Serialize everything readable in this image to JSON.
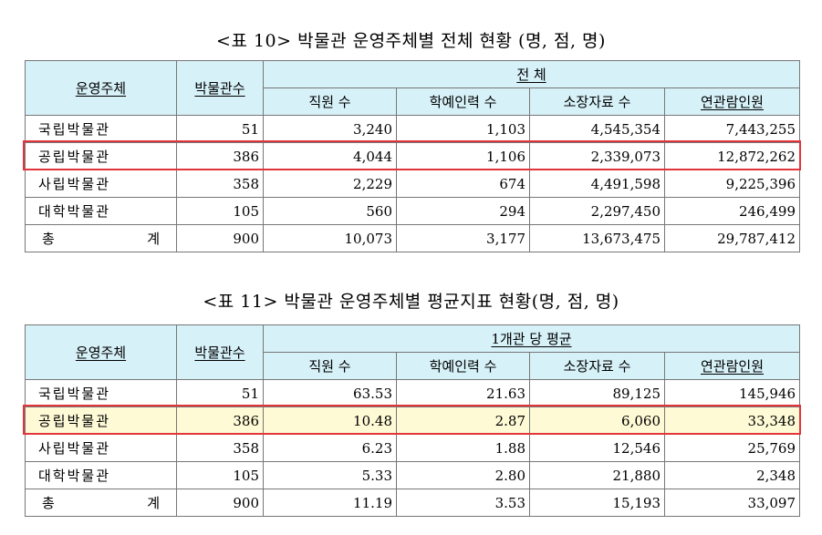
{
  "table10": {
    "caption": "<표 10> 박물관 운영주체별 전체 현황 (명, 점, 명)",
    "header": {
      "org": "운영주체",
      "count": "박물관수",
      "group": "전 체",
      "cols": [
        "직원 수",
        "학예인력 수",
        "소장자료 수",
        "연관람인원"
      ]
    },
    "rows": [
      {
        "org": "국립박물관",
        "count": "51",
        "v": [
          "3,240",
          "1,103",
          "4,545,354",
          "7,443,255"
        ]
      },
      {
        "org": "공립박물관",
        "count": "386",
        "v": [
          "4,044",
          "1,106",
          "2,339,073",
          "12,872,262"
        ]
      },
      {
        "org": "사립박물관",
        "count": "358",
        "v": [
          "2,229",
          "674",
          "4,491,598",
          "9,225,396"
        ]
      },
      {
        "org": "대학박물관",
        "count": "105",
        "v": [
          "560",
          "294",
          "2,297,450",
          "246,499"
        ]
      }
    ],
    "total": {
      "label_a": "총",
      "label_b": "계",
      "count": "900",
      "v": [
        "10,073",
        "3,177",
        "13,673,475",
        "29,787,412"
      ]
    }
  },
  "table11": {
    "caption": "<표 11> 박물관 운영주체별 평균지표 현황(명, 점, 명)",
    "header": {
      "org": "운영주체",
      "count": "박물관수",
      "group": "1개관 당 평균",
      "cols": [
        "직원 수",
        "학예인력 수",
        "소장자료 수",
        "연관람인원"
      ]
    },
    "rows": [
      {
        "org": "국립박물관",
        "count": "51",
        "v": [
          "63.53",
          "21.63",
          "89,125",
          "145,946"
        ]
      },
      {
        "org": "공립박물관",
        "count": "386",
        "v": [
          "10.48",
          "2.87",
          "6,060",
          "33,348"
        ]
      },
      {
        "org": "사립박물관",
        "count": "358",
        "v": [
          "6.23",
          "1.88",
          "12,546",
          "25,769"
        ]
      },
      {
        "org": "대학박물관",
        "count": "105",
        "v": [
          "5.33",
          "2.80",
          "21,880",
          "2,348"
        ]
      }
    ],
    "total": {
      "label_a": "총",
      "label_b": "계",
      "count": "900",
      "v": [
        "11.19",
        "3.53",
        "15,193",
        "33,097"
      ]
    }
  },
  "colors": {
    "header_bg": "#d6f1f8",
    "highlight_border": "#e2353b",
    "highlight_fill": "#fefad6"
  }
}
